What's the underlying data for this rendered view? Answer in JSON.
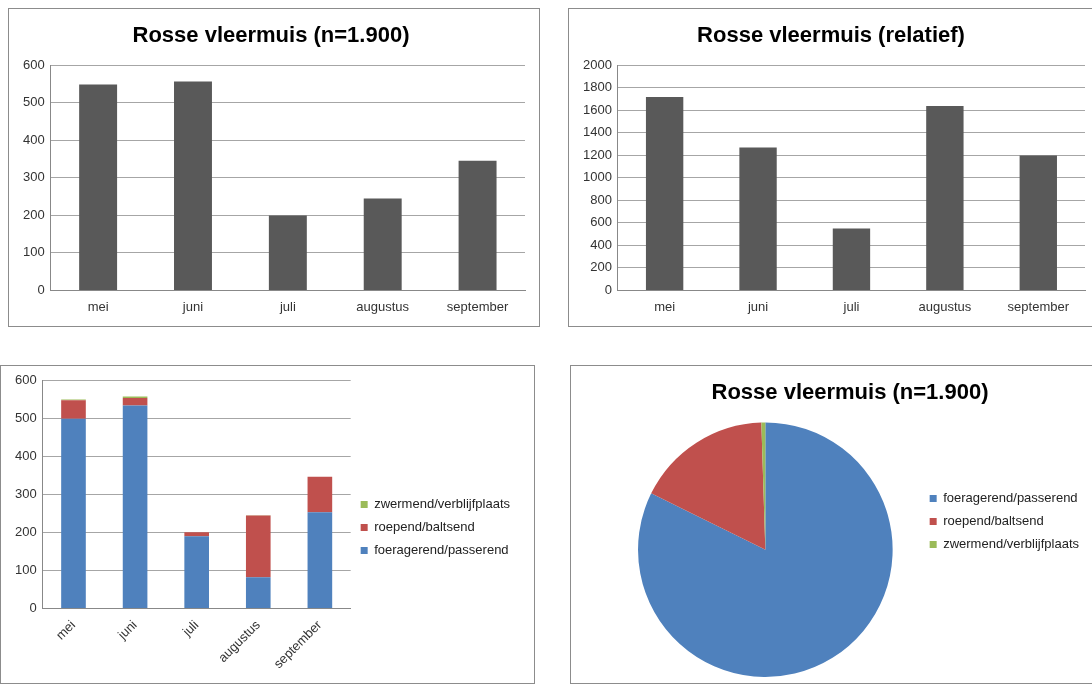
{
  "chart_data": [
    {
      "type": "bar",
      "title": "Rosse vleermuis (n=1.900)",
      "categories": [
        "mei",
        "juni",
        "juli",
        "augustus",
        "september"
      ],
      "values": [
        549,
        557,
        200,
        245,
        346
      ],
      "color": "#595959",
      "ylim": [
        0,
        600
      ],
      "yticks": [
        0,
        100,
        200,
        300,
        400,
        500,
        600
      ],
      "grid": "y",
      "legend": false
    },
    {
      "type": "bar",
      "title": "Rosse vleermuis (relatief)",
      "categories": [
        "mei",
        "juni",
        "juli",
        "augustus",
        "september"
      ],
      "values": [
        1720,
        1270,
        550,
        1640,
        1200
      ],
      "color": "#595959",
      "ylim": [
        0,
        2000
      ],
      "yticks": [
        0,
        200,
        400,
        600,
        800,
        1000,
        1200,
        1400,
        1600,
        1800,
        2000
      ],
      "grid": "y",
      "legend": false
    },
    {
      "type": "bar",
      "stacked": true,
      "categories": [
        "mei",
        "juni",
        "juli",
        "augustus",
        "september"
      ],
      "series": [
        {
          "name": "foeragerend/passerend",
          "color": "#4f81bd",
          "values": [
            498,
            533,
            190,
            82,
            253
          ]
        },
        {
          "name": "roepend/baltsend",
          "color": "#c0504d",
          "values": [
            49,
            20,
            10,
            162,
            93
          ]
        },
        {
          "name": "zwermend/verblijfplaats",
          "color": "#9bbb59",
          "values": [
            2,
            4,
            0,
            1,
            0
          ]
        }
      ],
      "ylim": [
        0,
        600
      ],
      "yticks": [
        0,
        100,
        200,
        300,
        400,
        500,
        600
      ],
      "grid": "y",
      "legend": "right"
    },
    {
      "type": "pie",
      "title": "Rosse vleermuis (n=1.900)",
      "categories": [
        "foeragerend/passerend",
        "roepend/baltsend",
        "zwermend/verblijfplaats"
      ],
      "values": [
        82.3,
        17.2,
        0.5
      ],
      "colors": [
        "#4f81bd",
        "#c0504d",
        "#9bbb59"
      ],
      "legend": "right"
    }
  ]
}
